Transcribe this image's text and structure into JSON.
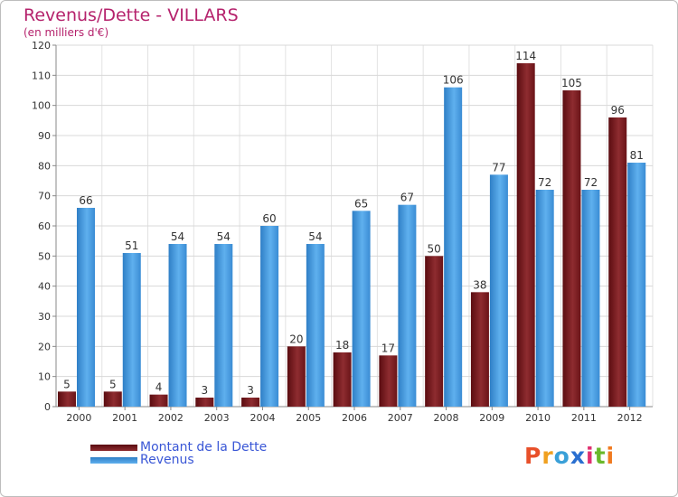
{
  "chart_data": {
    "type": "bar",
    "title": "Revenus/Dette - VILLARS",
    "subtitle": "(en milliers d'€)",
    "categories": [
      "2000",
      "2001",
      "2002",
      "2003",
      "2004",
      "2005",
      "2006",
      "2007",
      "2008",
      "2009",
      "2010",
      "2011",
      "2012"
    ],
    "series": [
      {
        "name": "Montant de la Dette",
        "color": "#7a1a1e",
        "values": [
          5,
          5,
          4,
          3,
          3,
          20,
          18,
          17,
          50,
          38,
          114,
          105,
          96
        ]
      },
      {
        "name": "Revenus",
        "color": "#3f95da",
        "values": [
          66,
          51,
          54,
          54,
          60,
          54,
          65,
          67,
          106,
          77,
          72,
          72,
          81
        ]
      }
    ],
    "ylim": [
      0,
      120
    ],
    "yticks": [
      0,
      10,
      20,
      30,
      40,
      50,
      60,
      70,
      80,
      90,
      100,
      110,
      120
    ],
    "grid": true,
    "legend": "bottom-left"
  },
  "logo": {
    "text": "Proxiti",
    "colors": [
      "#e8502a",
      "#f0a020",
      "#3aa0d8",
      "#2a6fd0",
      "#e03070",
      "#6ab82a",
      "#f07a20"
    ]
  }
}
